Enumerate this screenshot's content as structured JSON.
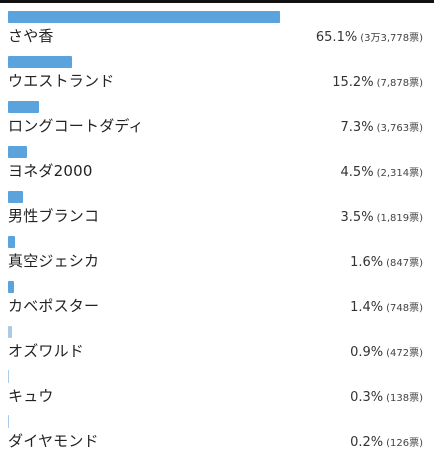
{
  "accent_color": "#5aa3dc",
  "results": [
    {
      "name": "さや香",
      "percent": "65.1%",
      "votes": "(3万3,778票)",
      "share": 0.651
    },
    {
      "name": "ウエストランド",
      "percent": "15.2%",
      "votes": "(7,878票)",
      "share": 0.152
    },
    {
      "name": "ロングコートダディ",
      "percent": "7.3%",
      "votes": "(3,763票)",
      "share": 0.073
    },
    {
      "name": "ヨネダ2000",
      "percent": "4.5%",
      "votes": "(2,314票)",
      "share": 0.045
    },
    {
      "name": "男性ブランコ",
      "percent": "3.5%",
      "votes": "(1,819票)",
      "share": 0.035
    },
    {
      "name": "真空ジェシカ",
      "percent": "1.6%",
      "votes": "(847票)",
      "share": 0.016
    },
    {
      "name": "カベポスター",
      "percent": "1.4%",
      "votes": "(748票)",
      "share": 0.014
    },
    {
      "name": "オズワルド",
      "percent": "0.9%",
      "votes": "(472票)",
      "share": 0.009
    },
    {
      "name": "キュウ",
      "percent": "0.3%",
      "votes": "(138票)",
      "share": 0.003
    },
    {
      "name": "ダイヤモンド",
      "percent": "0.2%",
      "votes": "(126票)",
      "share": 0.002
    }
  ]
}
